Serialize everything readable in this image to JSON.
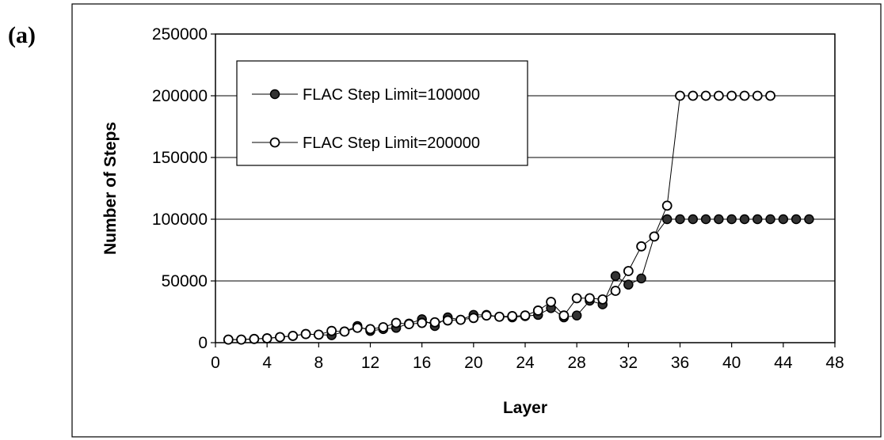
{
  "panel_label": "(a)",
  "chart_data": {
    "type": "line",
    "xlabel": "Layer",
    "ylabel": "Number of Steps",
    "xlim": [
      0,
      48
    ],
    "ylim": [
      0,
      250000
    ],
    "x_ticks": [
      0,
      4,
      8,
      12,
      16,
      20,
      24,
      28,
      32,
      36,
      40,
      44,
      48
    ],
    "y_ticks": [
      0,
      50000,
      100000,
      150000,
      200000,
      250000
    ],
    "grid": "horizontal",
    "legend_position": "top-left",
    "series": [
      {
        "name": "FLAC Step Limit=100000",
        "marker": "filled-circle",
        "x": [
          1,
          2,
          3,
          4,
          5,
          6,
          7,
          8,
          9,
          10,
          11,
          12,
          13,
          14,
          15,
          16,
          17,
          18,
          19,
          20,
          21,
          22,
          23,
          24,
          25,
          26,
          27,
          28,
          29,
          30,
          31,
          32,
          33,
          34,
          35,
          36,
          37,
          38,
          39,
          40,
          41,
          42,
          43,
          44,
          45,
          46
        ],
        "values": [
          2500,
          2500,
          3000,
          3500,
          4500,
          5500,
          7000,
          6500,
          6000,
          9000,
          13500,
          9500,
          11000,
          12000,
          15500,
          19000,
          13500,
          20500,
          18500,
          22500,
          22500,
          21000,
          20500,
          21500,
          22500,
          28000,
          20500,
          22000,
          34000,
          31000,
          54000,
          47000,
          52000,
          86000,
          100000,
          100000,
          100000,
          100000,
          100000,
          100000,
          100000,
          100000,
          100000,
          100000,
          100000,
          100000
        ]
      },
      {
        "name": "FLAC Step Limit=200000",
        "marker": "open-circle",
        "x": [
          1,
          2,
          3,
          4,
          5,
          6,
          7,
          8,
          9,
          10,
          11,
          12,
          13,
          14,
          15,
          16,
          17,
          18,
          19,
          20,
          21,
          22,
          23,
          24,
          25,
          26,
          27,
          28,
          29,
          30,
          31,
          32,
          33,
          34,
          35,
          36,
          37,
          38,
          39,
          40,
          41,
          42,
          43
        ],
        "values": [
          2500,
          2500,
          3000,
          3500,
          4500,
          5500,
          7000,
          6500,
          9500,
          9000,
          12000,
          11000,
          12500,
          16000,
          15000,
          16000,
          16500,
          18000,
          18500,
          20000,
          22000,
          21000,
          21500,
          22000,
          26000,
          33000,
          22000,
          36000,
          36000,
          35000,
          42000,
          58000,
          78000,
          86000,
          111000,
          200000,
          200000,
          200000,
          200000,
          200000,
          200000,
          200000,
          200000
        ]
      }
    ]
  }
}
